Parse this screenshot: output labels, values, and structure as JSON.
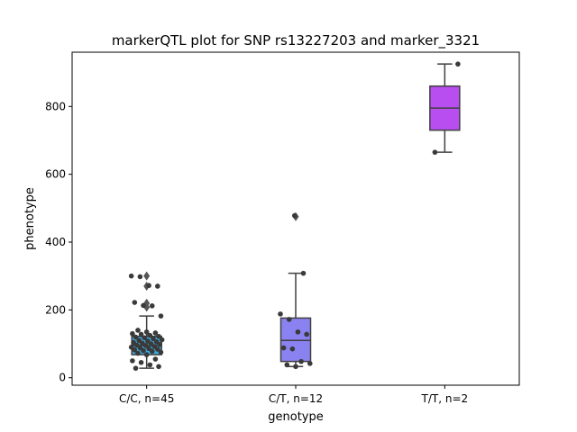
{
  "chart_data": {
    "type": "box",
    "title": "markerQTL plot for SNP rs13227203 and marker_3321",
    "xlabel": "genotype",
    "ylabel": "phenotype",
    "ylim": [
      -22,
      960
    ],
    "yticks": [
      0,
      200,
      400,
      600,
      800
    ],
    "grid": false,
    "categories": [
      "C/C, n=45",
      "C/T, n=12",
      "T/T, n=2"
    ],
    "boxes": [
      {
        "category": "C/C, n=45",
        "color": "#3fa9e0",
        "q1": 68,
        "median": 95,
        "q3": 122,
        "whisker_low": 28,
        "whisker_high": 182,
        "fliers": [
          300,
          270,
          220,
          208
        ]
      },
      {
        "category": "C/T, n=12",
        "color": "#8a82f0",
        "q1": 48,
        "median": 110,
        "q3": 176,
        "whisker_low": 33,
        "whisker_high": 308,
        "fliers": [
          475
        ]
      },
      {
        "category": "T/T, n=2",
        "color": "#b84ef0",
        "q1": 730,
        "median": 795,
        "q3": 860,
        "whisker_low": 665,
        "whisker_high": 925,
        "fliers": []
      }
    ],
    "points": [
      {
        "category": "C/C, n=45",
        "y": [
          300,
          298,
          272,
          270,
          222,
          213,
          212,
          182,
          140,
          135,
          132,
          130,
          128,
          125,
          122,
          120,
          118,
          115,
          112,
          110,
          108,
          106,
          104,
          102,
          100,
          98,
          96,
          95,
          92,
          90,
          88,
          86,
          84,
          82,
          80,
          78,
          75,
          72,
          68,
          55,
          50,
          45,
          38,
          33,
          28
        ]
      },
      {
        "category": "C/T, n=12",
        "y": [
          478,
          308,
          188,
          172,
          135,
          128,
          88,
          85,
          48,
          42,
          38,
          33
        ]
      },
      {
        "category": "T/T, n=2",
        "y": [
          925,
          665
        ]
      }
    ],
    "style": {
      "box_edge_color": "#404040",
      "point_color": "#3a3a3a",
      "flier_color": "#555555",
      "axis_color": "#000000"
    }
  }
}
